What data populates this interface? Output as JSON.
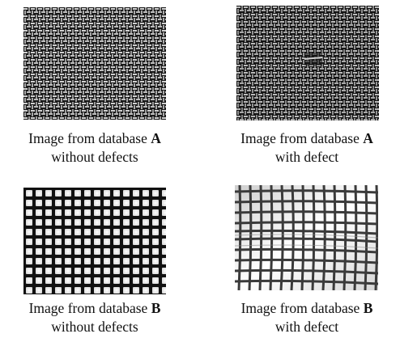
{
  "panels": [
    {
      "id": "a-ok",
      "caption_prefix": "Image from database",
      "database": "A",
      "caption_line2": "without defects",
      "texture": "fine-wire-mesh-dark"
    },
    {
      "id": "a-def",
      "caption_prefix": "Image from database",
      "database": "A",
      "caption_line2": "with defect",
      "texture": "fine-wire-mesh-dark-defect"
    },
    {
      "id": "b-ok",
      "caption_prefix": "Image from database",
      "database": "B",
      "caption_line2": "without defects",
      "texture": "square-grid-backlit"
    },
    {
      "id": "b-def",
      "caption_prefix": "Image from database",
      "database": "B",
      "caption_line2": "with defect",
      "texture": "square-grid-backlit-defect"
    }
  ],
  "colors": {
    "mesh_dark_bg": "#1a1a1a",
    "mesh_wire": "#c8c8c8",
    "grid_light": "#f2f2f2",
    "grid_wire": "#111111"
  }
}
